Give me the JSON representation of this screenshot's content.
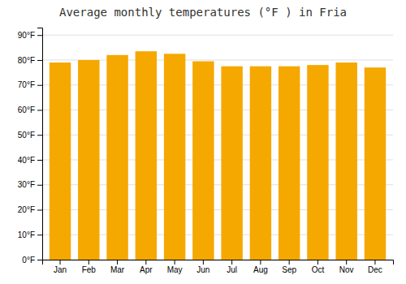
{
  "chart_data": {
    "type": "bar",
    "title": "Average monthly temperatures (°F ) in Fria",
    "categories": [
      "Jan",
      "Feb",
      "Mar",
      "Apr",
      "May",
      "Jun",
      "Jul",
      "Aug",
      "Sep",
      "Oct",
      "Nov",
      "Dec"
    ],
    "values": [
      79,
      80,
      82,
      83.5,
      82.5,
      79.5,
      77.5,
      77.5,
      77.5,
      78,
      79,
      77
    ],
    "color": "#F5A800",
    "ylim": [
      0,
      93
    ],
    "yticks": [
      {
        "value": 0,
        "label": "0°F"
      },
      {
        "value": 10,
        "label": "10°F"
      },
      {
        "value": 20,
        "label": "20°F"
      },
      {
        "value": 30,
        "label": "30°F"
      },
      {
        "value": 40,
        "label": "40°F"
      },
      {
        "value": 50,
        "label": "50°F"
      },
      {
        "value": 60,
        "label": "60°F"
      },
      {
        "value": 70,
        "label": "70°F"
      },
      {
        "value": 80,
        "label": "80°F"
      },
      {
        "value": 90,
        "label": "90°F"
      }
    ],
    "grid": true
  }
}
